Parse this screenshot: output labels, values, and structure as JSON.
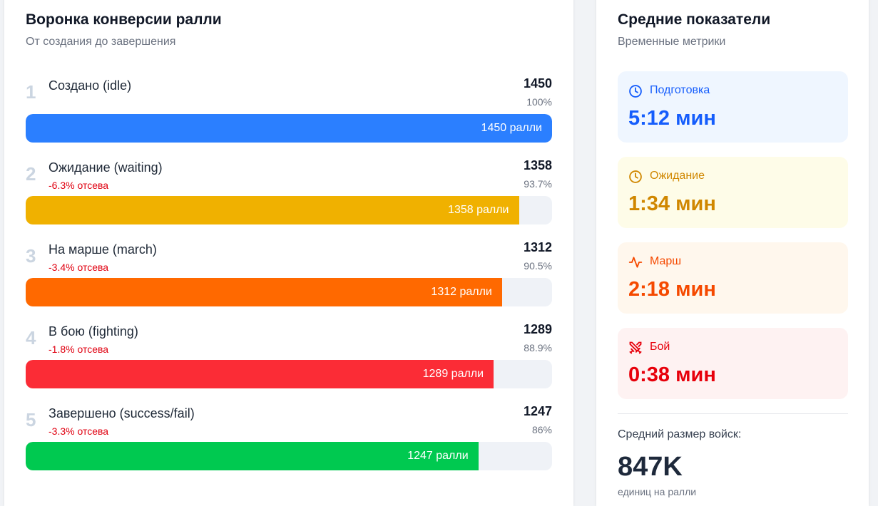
{
  "funnel": {
    "title": "Воронка конверсии ралли",
    "subtitle": "От создания до завершения",
    "stages": [
      {
        "num": "1",
        "name": "Создано (idle)",
        "drop": "",
        "count": "1450",
        "percent": "100%",
        "percent_value": 100,
        "bar_label": "1450 ралли",
        "color": "#2b7fff"
      },
      {
        "num": "2",
        "name": "Ожидание (waiting)",
        "drop": "-6.3% отсева",
        "count": "1358",
        "percent": "93.7%",
        "percent_value": 93.7,
        "bar_label": "1358 ралли",
        "color": "#f0b100"
      },
      {
        "num": "3",
        "name": "На марше (march)",
        "drop": "-3.4% отсева",
        "count": "1312",
        "percent": "90.5%",
        "percent_value": 90.5,
        "bar_label": "1312 ралли",
        "color": "#ff6900"
      },
      {
        "num": "4",
        "name": "В бою (fighting)",
        "drop": "-1.8% отсева",
        "count": "1289",
        "percent": "88.9%",
        "percent_value": 88.9,
        "bar_label": "1289 ралли",
        "color": "#fb2c36"
      },
      {
        "num": "5",
        "name": "Завершено (success/fail)",
        "drop": "-3.3% отсева",
        "count": "1247",
        "percent": "86%",
        "percent_value": 86,
        "bar_label": "1247 ралли",
        "color": "#00c950"
      }
    ]
  },
  "metrics": {
    "title": "Средние показатели",
    "subtitle": "Временные метрики",
    "items": [
      {
        "label": "Подготовка",
        "value": "5:12 мин",
        "icon": "clock-icon",
        "color": "#155dfc",
        "bg": "#eff6ff"
      },
      {
        "label": "Ожидание",
        "value": "1:34 мин",
        "icon": "clock-icon",
        "color": "#d08700",
        "bg": "#fefce8"
      },
      {
        "label": "Марш",
        "value": "2:18 мин",
        "icon": "activity-icon",
        "color": "#f54900",
        "bg": "#fff7ed"
      },
      {
        "label": "Бой",
        "value": "0:38 мин",
        "icon": "swords-icon",
        "color": "#e7000b",
        "bg": "#fef2f2"
      }
    ],
    "army_label": "Средний размер войск:",
    "army_value": "847K",
    "army_unit": "единиц на ралли"
  }
}
